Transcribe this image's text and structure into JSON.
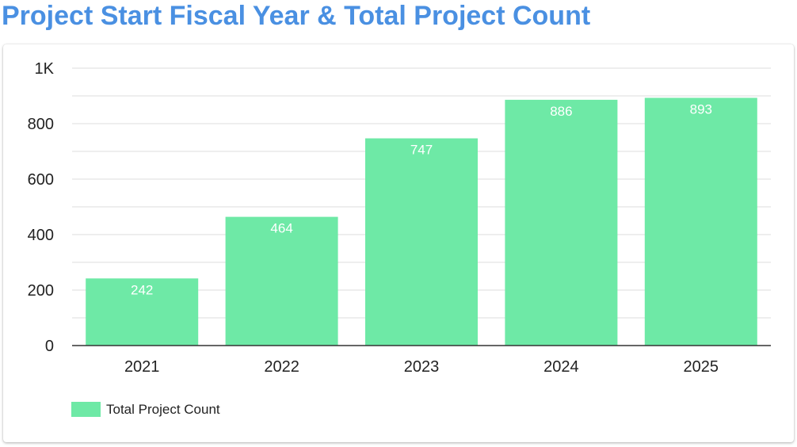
{
  "chart_data": {
    "type": "bar",
    "title": "Project Start Fiscal Year & Total Project Count",
    "categories": [
      "2021",
      "2022",
      "2023",
      "2024",
      "2025"
    ],
    "series": [
      {
        "name": "Total Project Count",
        "values": [
          242,
          464,
          747,
          886,
          893
        ],
        "color": "#6ee9a6"
      }
    ],
    "xlabel": "",
    "ylabel": "",
    "ylim": [
      0,
      1000
    ],
    "yticks": [
      0,
      200,
      400,
      600,
      800,
      1000
    ],
    "ytick_labels": [
      "0",
      "200",
      "400",
      "600",
      "800",
      "1K"
    ],
    "data_labels": [
      "242",
      "464",
      "747",
      "886",
      "893"
    ],
    "grid": true,
    "legend_position": "bottom-left"
  }
}
